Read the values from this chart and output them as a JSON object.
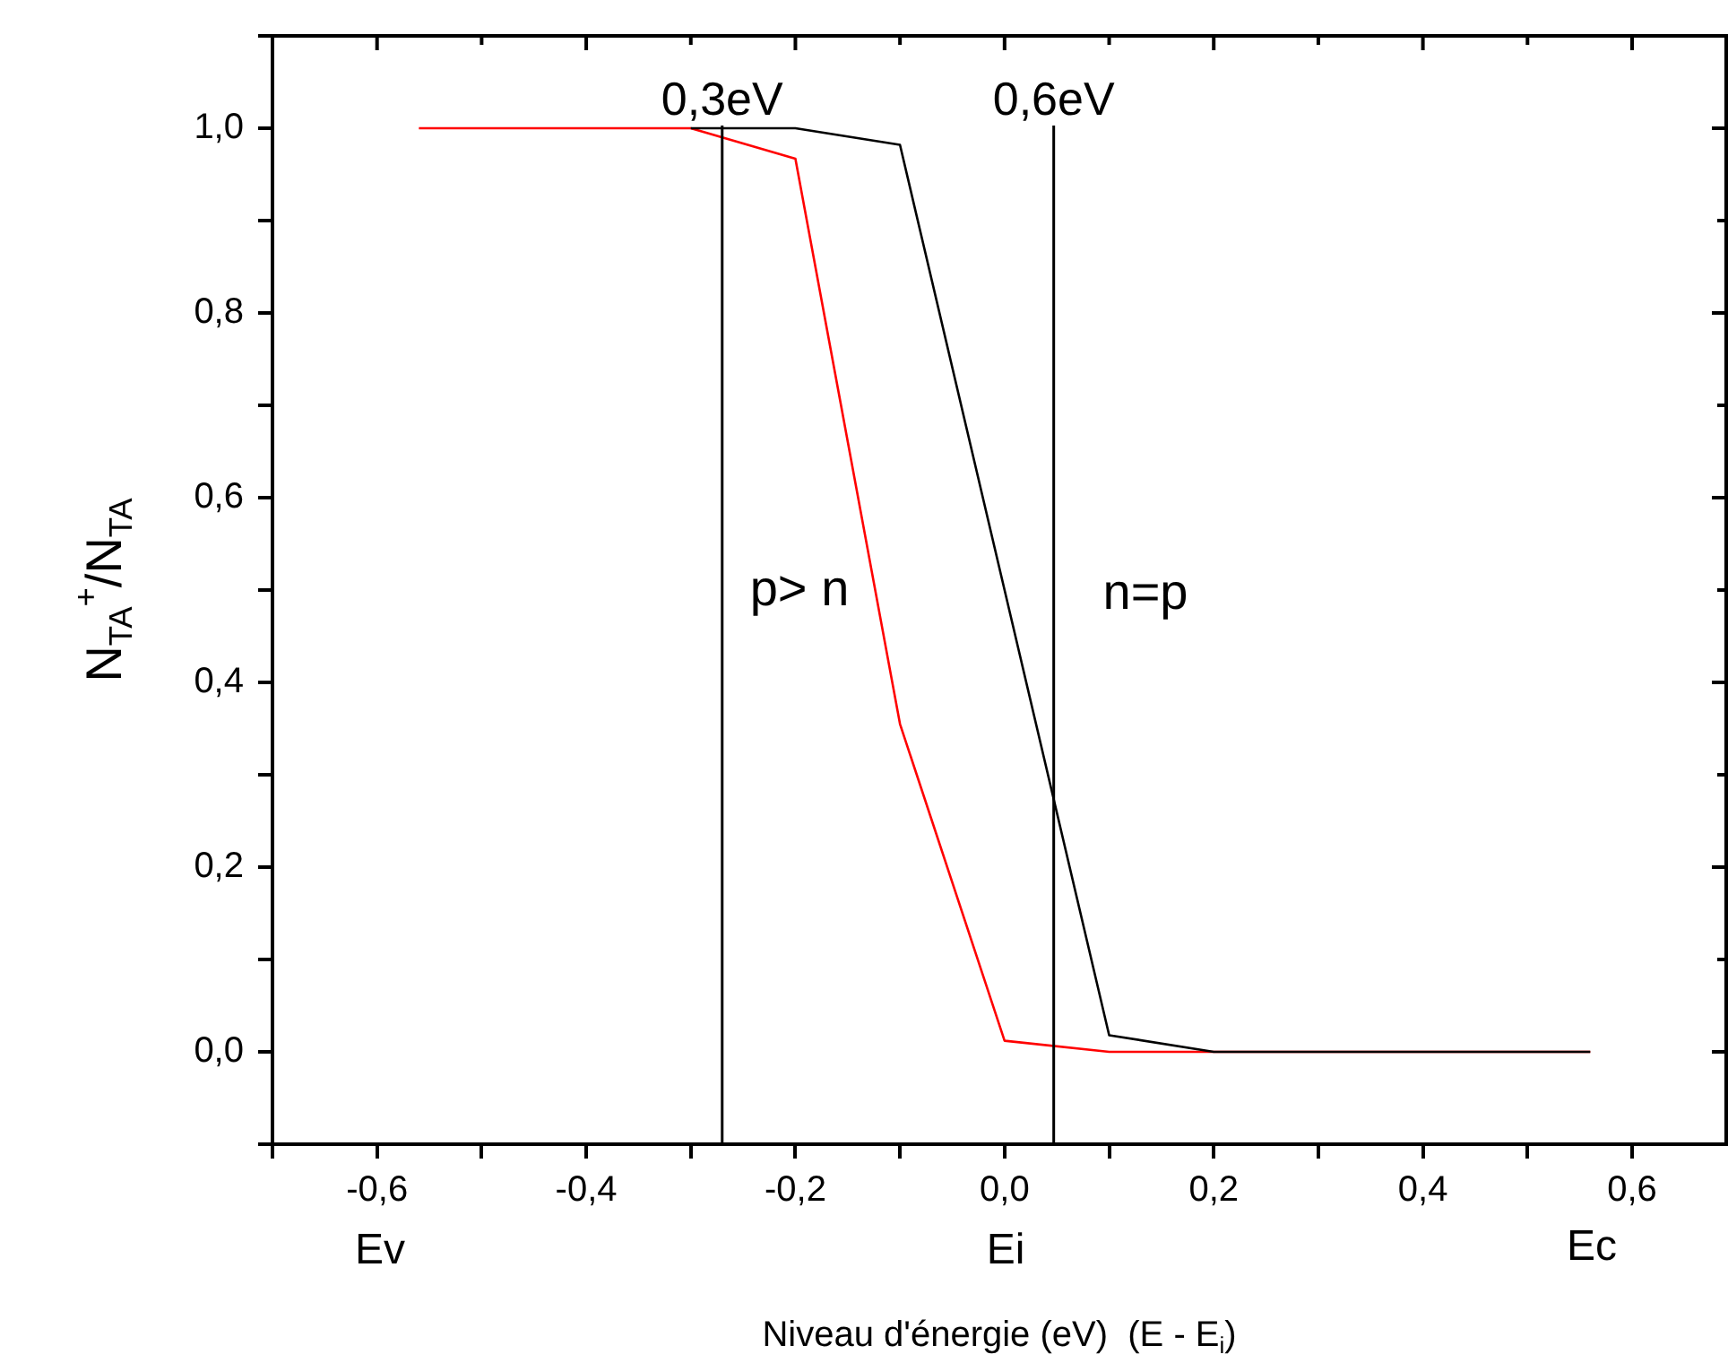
{
  "chart_data": {
    "type": "line",
    "xlabel": "Niveau d'énergie (eV)  (E - E$_{i}$)",
    "ylabel": "N$_{TA}$$^{+}$/N$_{TA}$",
    "series": [
      {
        "color": "#000000",
        "x": [
          -0.3,
          -0.2,
          -0.1,
          0,
          0.1,
          0.2,
          0.56
        ],
        "values": [
          1,
          1,
          0.982,
          0.5,
          0.018,
          0,
          0
        ]
      },
      {
        "color": "#ff0000",
        "x": [
          -0.56,
          -0.3,
          -0.2,
          -0.1,
          0,
          0.1,
          0.2,
          0.56
        ],
        "values": [
          1,
          1,
          0.967,
          0.355,
          0.012,
          0,
          0,
          0
        ]
      }
    ],
    "xlim": [
      -0.7,
      0.69
    ],
    "ylim": [
      -0.1,
      1.1
    ],
    "xticks": [
      {
        "value": -0.7,
        "label": null
      },
      {
        "value": -0.6,
        "label": "-0,6"
      },
      {
        "value": -0.5,
        "label": null
      },
      {
        "value": -0.4,
        "label": "-0,4"
      },
      {
        "value": -0.3,
        "label": null
      },
      {
        "value": -0.2,
        "label": "-0,2"
      },
      {
        "value": -0.1,
        "label": null
      },
      {
        "value": 0,
        "label": "0,0"
      },
      {
        "value": 0.1,
        "label": null
      },
      {
        "value": 0.2,
        "label": "0,2"
      },
      {
        "value": 0.3,
        "label": null
      },
      {
        "value": 0.4,
        "label": "0,4"
      },
      {
        "value": 0.5,
        "label": null
      },
      {
        "value": 0.6,
        "label": "0,6"
      }
    ],
    "yticks": [
      {
        "value": -0.1,
        "label": null
      },
      {
        "value": 0,
        "label": "0,0"
      },
      {
        "value": 0.1,
        "label": null
      },
      {
        "value": 0.2,
        "label": "0,2"
      },
      {
        "value": 0.3,
        "label": null
      },
      {
        "value": 0.4,
        "label": "0,4"
      },
      {
        "value": 0.5,
        "label": null
      },
      {
        "value": 0.6,
        "label": "0,6"
      },
      {
        "value": 0.7,
        "label": null
      },
      {
        "value": 0.8,
        "label": "0,8"
      },
      {
        "value": 0.9,
        "label": null
      },
      {
        "value": 1,
        "label": "1,0"
      },
      {
        "value": 1.1,
        "label": null
      }
    ],
    "ref_lines": [
      {
        "axis": "x",
        "value": -0.27,
        "label": "0,3eV",
        "color": "#000000"
      },
      {
        "axis": "x",
        "value": 0.047,
        "label": "0,6eV",
        "color": "#000000"
      }
    ],
    "annotations": [
      "p> n",
      "n=p",
      "Ev",
      "Ei",
      "Ec"
    ],
    "marker": "none",
    "line_style": "solid",
    "legend": false
  }
}
